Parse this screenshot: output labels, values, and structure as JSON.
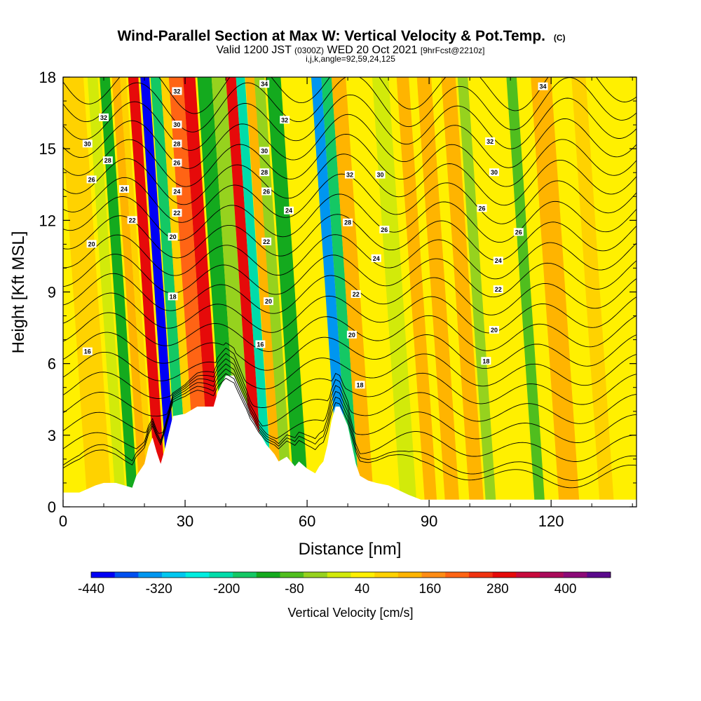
{
  "chart_data": {
    "type": "heatmap",
    "title": "Wind-Parallel Section at Max W: Vertical Velocity & Pot.Temp.",
    "title_mark": "(C)",
    "subtitle": {
      "part1": "Valid 1200 JST",
      "part2": "(0300Z)",
      "part3": "WED 20 Oct 2021",
      "part4": "[9hrFcst@2210z]"
    },
    "subline": "i,j,k,angle=92,59,24,125",
    "xlabel": "Distance [nm]",
    "ylabel": "Height [Kft MSL]",
    "xlim": [
      0,
      141
    ],
    "ylim": [
      0,
      18
    ],
    "x_ticks": [
      0,
      30,
      60,
      90,
      120
    ],
    "y_ticks": [
      0,
      3,
      6,
      9,
      12,
      15,
      18
    ],
    "colorbar": {
      "label": "Vertical Velocity [cm/s]",
      "range": [
        -440,
        480
      ],
      "tick_values": [
        -440,
        -320,
        -200,
        -80,
        40,
        160,
        280,
        400
      ],
      "tick_labels": [
        "-440",
        "-320",
        "-200",
        "-80",
        "40",
        "160",
        "280",
        "400"
      ],
      "colors": [
        "#0000f5",
        "#0050f0",
        "#0096f0",
        "#00c8f0",
        "#00eee0",
        "#00dcaa",
        "#14c864",
        "#14aa1e",
        "#50be1e",
        "#96d21e",
        "#d2ea0a",
        "#fff000",
        "#ffd200",
        "#ffb400",
        "#ff8c14",
        "#ff6414",
        "#f03210",
        "#e60a0a",
        "#c80a3c",
        "#aa0a5a",
        "#8c0a78",
        "#5a0a8c"
      ]
    },
    "vertical_velocity_bands": [
      {
        "x": 0,
        "w": 141,
        "v": 30
      },
      {
        "x": 6,
        "w": 6,
        "v": 80
      },
      {
        "x": 13,
        "w": 2.5,
        "v": -20
      },
      {
        "x": 16,
        "w": 2.5,
        "v": -140
      },
      {
        "x": 19,
        "w": 2,
        "v": 140
      },
      {
        "x": 21,
        "w": 1.5,
        "v": 80
      },
      {
        "x": 23,
        "w": 2.5,
        "v": 280
      },
      {
        "x": 26,
        "w": 2.2,
        "v": -400
      },
      {
        "x": 28.5,
        "w": 2.5,
        "v": -160
      },
      {
        "x": 31,
        "w": 2.5,
        "v": 100
      },
      {
        "x": 33,
        "w": 3.5,
        "v": 200
      },
      {
        "x": 36.5,
        "w": 3,
        "v": 280
      },
      {
        "x": 40,
        "w": 3.5,
        "v": -140
      },
      {
        "x": 43.5,
        "w": 3.5,
        "v": -60
      },
      {
        "x": 47,
        "w": 2.5,
        "v": 280
      },
      {
        "x": 49.5,
        "w": 2.2,
        "v": -200
      },
      {
        "x": 51.8,
        "w": 2.5,
        "v": 140
      },
      {
        "x": 54,
        "w": 2.5,
        "v": -40
      },
      {
        "x": 57,
        "w": 3.5,
        "v": -110
      },
      {
        "x": 61,
        "w": 2.5,
        "v": 60
      },
      {
        "x": 64,
        "w": 3.5,
        "v": 40
      },
      {
        "x": 68,
        "w": 2.5,
        "v": -330
      },
      {
        "x": 70.5,
        "w": 2.5,
        "v": -150
      },
      {
        "x": 73,
        "w": 3.5,
        "v": 120
      },
      {
        "x": 77,
        "w": 3,
        "v": 60
      },
      {
        "x": 83,
        "w": 4,
        "v": 10
      },
      {
        "x": 89,
        "w": 3,
        "v": 120
      },
      {
        "x": 94,
        "w": 3.5,
        "v": 120
      },
      {
        "x": 100,
        "w": 3.5,
        "v": 120
      },
      {
        "x": 104,
        "w": 2.5,
        "v": -50
      },
      {
        "x": 108,
        "w": 3,
        "v": 60
      },
      {
        "x": 116,
        "w": 2.5,
        "v": -70
      },
      {
        "x": 122,
        "w": 5,
        "v": 120
      },
      {
        "x": 132,
        "w": 3.5,
        "v": 100
      }
    ],
    "terrain_km": {
      "x": [
        0,
        4,
        8,
        10,
        13,
        17,
        18,
        20,
        21,
        22,
        23,
        24,
        25,
        26,
        27,
        30,
        33,
        37,
        38,
        40,
        42,
        45,
        46,
        47,
        48,
        50,
        52,
        53,
        55,
        57,
        58,
        60,
        61,
        62,
        63,
        64,
        65,
        66,
        67,
        68,
        70,
        71,
        72,
        73,
        75,
        77,
        80,
        85,
        88,
        92,
        100,
        110,
        120,
        130,
        141
      ],
      "y": [
        0.6,
        0.6,
        0.9,
        1.0,
        1.0,
        0.8,
        1.3,
        1.8,
        2.5,
        2.9,
        2.3,
        1.8,
        2.4,
        3.1,
        3.8,
        3.9,
        4.2,
        4.2,
        4.8,
        5.5,
        5.5,
        4.4,
        3.9,
        3.6,
        3.2,
        2.6,
        2.2,
        1.9,
        2.1,
        1.7,
        1.9,
        1.6,
        1.5,
        1.4,
        1.7,
        1.9,
        2.6,
        3.6,
        4.2,
        4.2,
        3.4,
        2.6,
        1.8,
        1.3,
        1.1,
        1.0,
        0.9,
        0.5,
        0.3,
        0.3,
        0.3,
        0.3,
        0.3,
        0.3,
        0.3
      ]
    },
    "theta_levels": [
      16,
      18,
      20,
      22,
      24,
      26,
      28,
      30,
      32,
      34
    ],
    "contour_labels": [
      {
        "x": 10,
        "y": 16.3,
        "text": "32"
      },
      {
        "x": 6,
        "y": 15.2,
        "text": "30"
      },
      {
        "x": 11,
        "y": 14.5,
        "text": "28"
      },
      {
        "x": 7,
        "y": 13.7,
        "text": "26"
      },
      {
        "x": 15,
        "y": 13.3,
        "text": "24"
      },
      {
        "x": 17,
        "y": 12.0,
        "text": "22"
      },
      {
        "x": 7,
        "y": 11.0,
        "text": "20"
      },
      {
        "x": 6,
        "y": 6.5,
        "text": "16"
      },
      {
        "x": 28,
        "y": 17.4,
        "text": "32"
      },
      {
        "x": 28,
        "y": 16.0,
        "text": "30"
      },
      {
        "x": 28,
        "y": 15.2,
        "text": "28"
      },
      {
        "x": 28,
        "y": 14.4,
        "text": "26"
      },
      {
        "x": 28,
        "y": 13.2,
        "text": "24"
      },
      {
        "x": 28,
        "y": 12.3,
        "text": "22"
      },
      {
        "x": 27,
        "y": 11.3,
        "text": "20"
      },
      {
        "x": 27,
        "y": 8.8,
        "text": "18"
      },
      {
        "x": 49.5,
        "y": 17.7,
        "text": "34"
      },
      {
        "x": 54.5,
        "y": 16.2,
        "text": "32"
      },
      {
        "x": 49.5,
        "y": 14.9,
        "text": "30"
      },
      {
        "x": 49.5,
        "y": 14.0,
        "text": "28"
      },
      {
        "x": 50,
        "y": 13.2,
        "text": "26"
      },
      {
        "x": 55.5,
        "y": 12.4,
        "text": "24"
      },
      {
        "x": 50,
        "y": 11.1,
        "text": "22"
      },
      {
        "x": 50.5,
        "y": 8.6,
        "text": "20"
      },
      {
        "x": 48.5,
        "y": 6.8,
        "text": "16"
      },
      {
        "x": 70.5,
        "y": 13.9,
        "text": "32"
      },
      {
        "x": 70,
        "y": 11.9,
        "text": "28"
      },
      {
        "x": 78,
        "y": 13.9,
        "text": "30"
      },
      {
        "x": 79,
        "y": 11.6,
        "text": "26"
      },
      {
        "x": 77,
        "y": 10.4,
        "text": "24"
      },
      {
        "x": 72,
        "y": 8.9,
        "text": "22"
      },
      {
        "x": 71,
        "y": 7.2,
        "text": "20"
      },
      {
        "x": 73,
        "y": 5.1,
        "text": "18"
      },
      {
        "x": 118,
        "y": 17.6,
        "text": "34"
      },
      {
        "x": 105,
        "y": 15.3,
        "text": "32"
      },
      {
        "x": 106,
        "y": 14.0,
        "text": "30"
      },
      {
        "x": 103,
        "y": 12.5,
        "text": "26"
      },
      {
        "x": 112,
        "y": 11.5,
        "text": "26"
      },
      {
        "x": 107,
        "y": 10.3,
        "text": "24"
      },
      {
        "x": 107,
        "y": 9.1,
        "text": "22"
      },
      {
        "x": 106,
        "y": 7.4,
        "text": "20"
      },
      {
        "x": 104,
        "y": 6.1,
        "text": "18"
      }
    ]
  }
}
